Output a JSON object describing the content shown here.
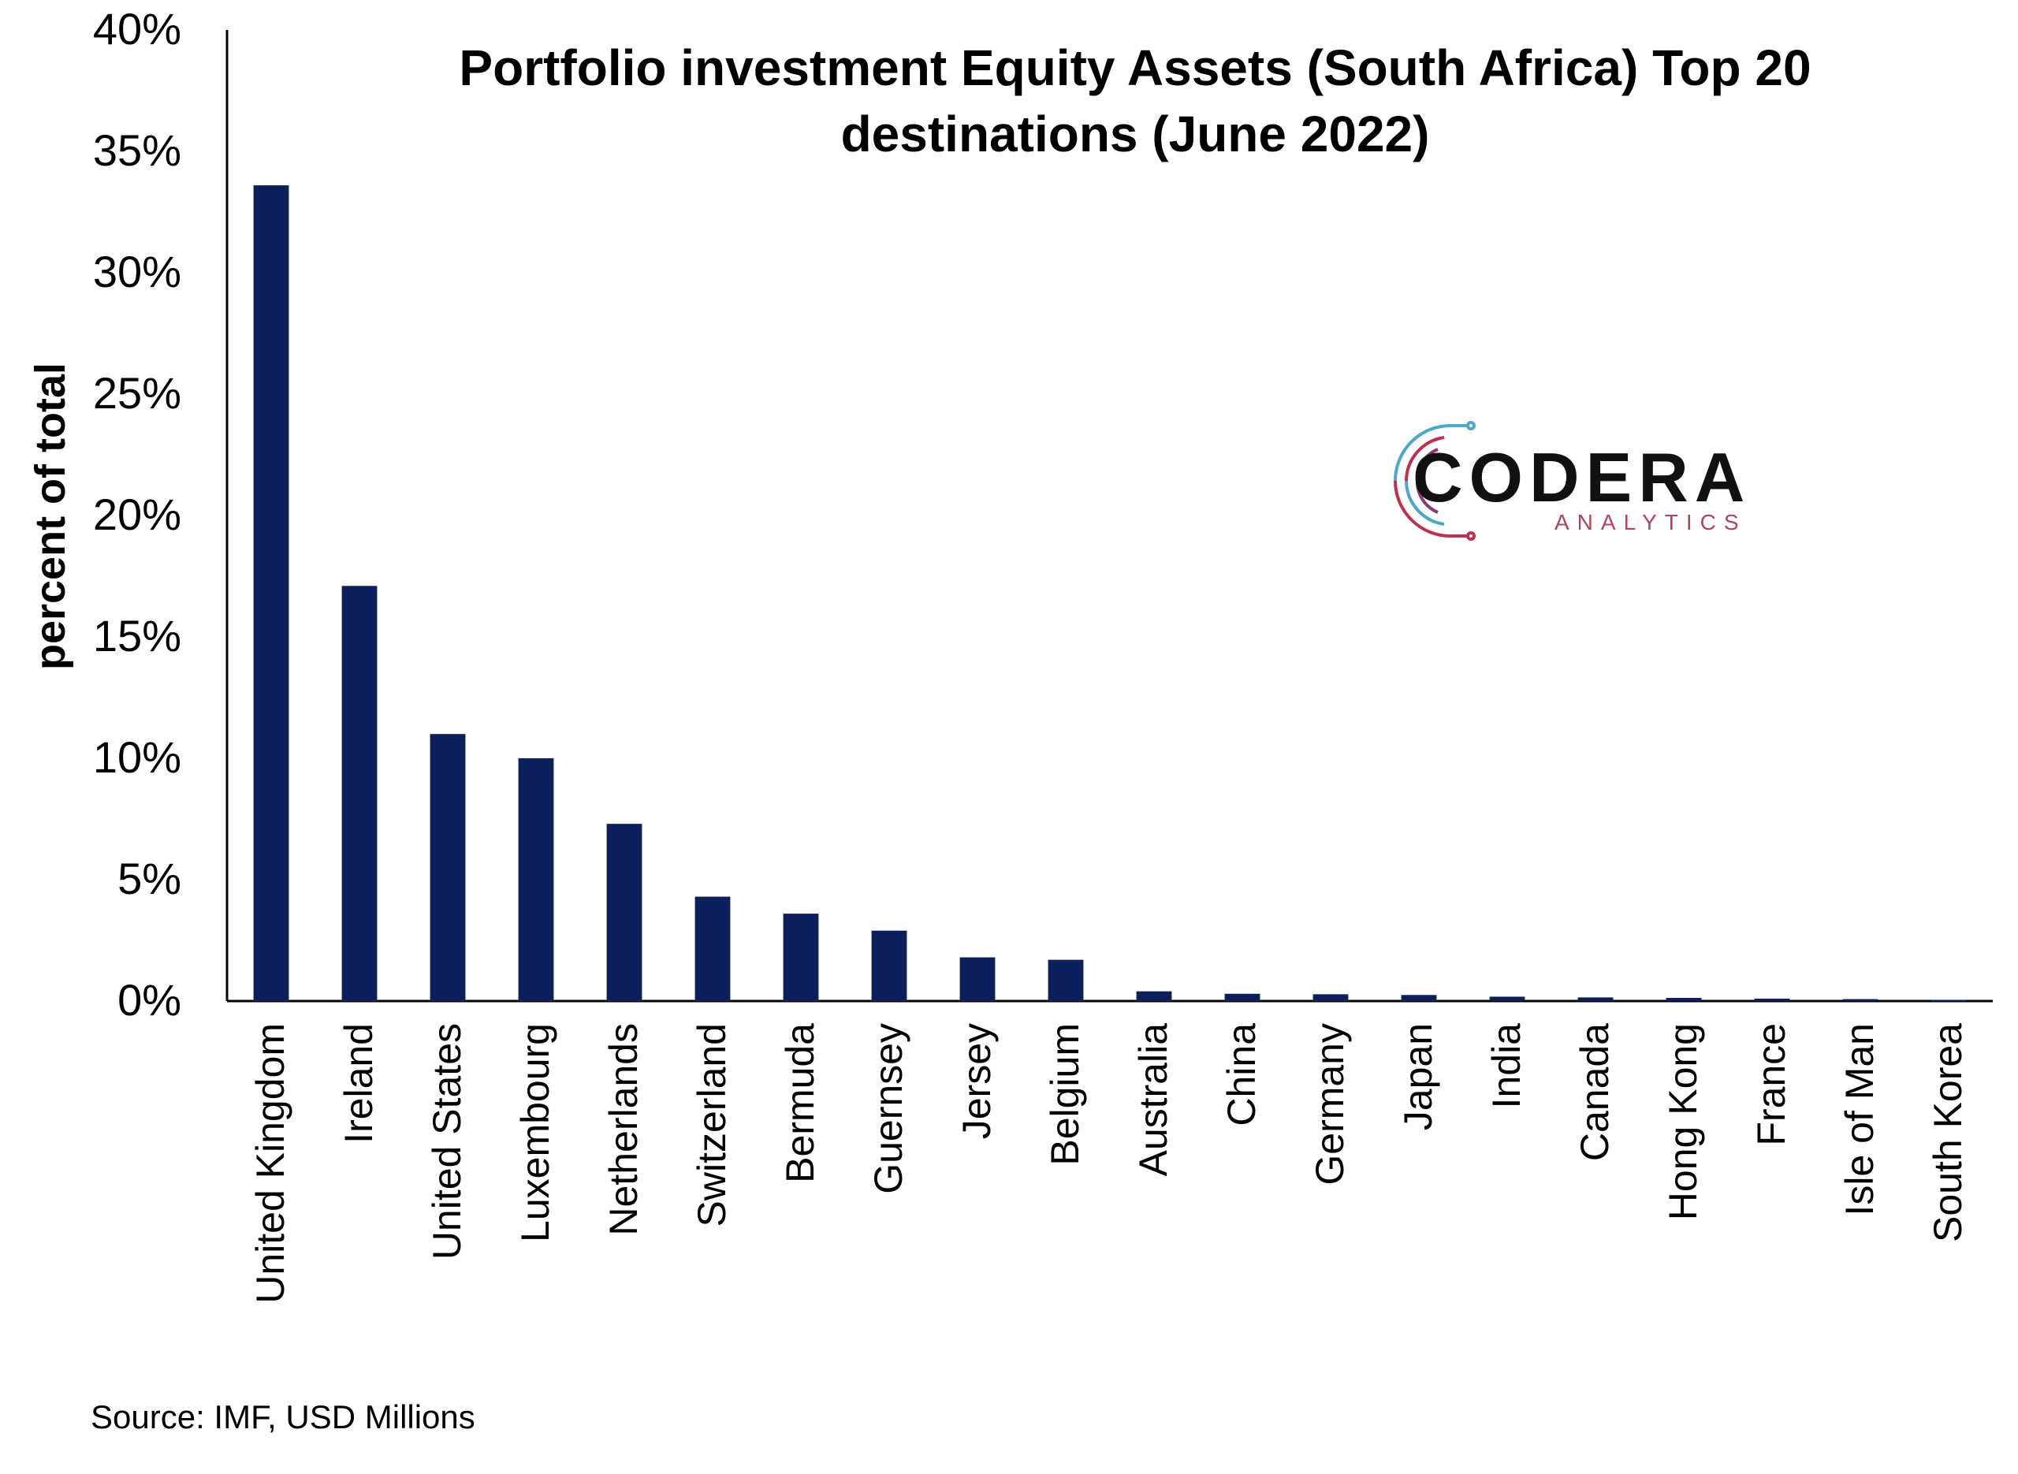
{
  "chart_data": {
    "type": "bar",
    "title_lines": [
      "Portfolio investment Equity Assets (South Africa) Top 20",
      "destinations (June 2022)"
    ],
    "ylabel": "percent of total",
    "xlabel": "",
    "ylim": [
      0,
      40
    ],
    "y_ticks": [
      "0%",
      "5%",
      "10%",
      "15%",
      "20%",
      "25%",
      "30%",
      "35%",
      "40%"
    ],
    "y_tick_values": [
      0,
      5,
      10,
      15,
      20,
      25,
      30,
      35,
      40
    ],
    "categories": [
      "United Kingdom",
      "Ireland",
      "United States",
      "Luxembourg",
      "Netherlands",
      "Switzerland",
      "Bermuda",
      "Guernsey",
      "Jersey",
      "Belgium",
      "Australia",
      "China",
      "Germany",
      "Japan",
      "India",
      "Canada",
      "Hong Kong",
      "France",
      "Isle of Man",
      "South Korea"
    ],
    "values": [
      33.6,
      17.1,
      11.0,
      10.0,
      7.3,
      4.3,
      3.6,
      2.9,
      1.8,
      1.7,
      0.4,
      0.3,
      0.28,
      0.25,
      0.18,
      0.15,
      0.13,
      0.1,
      0.08,
      0.05
    ],
    "bar_color": "#0b1f5c",
    "grid": false,
    "legend": "none"
  },
  "source_note": "Source: IMF, USD Millions",
  "logo": {
    "name": "CODERA",
    "subtitle": "ANALYTICS",
    "subtitle_color": "#b0445a",
    "accent_colors": [
      "#c0304a",
      "#4aa8c8"
    ]
  }
}
